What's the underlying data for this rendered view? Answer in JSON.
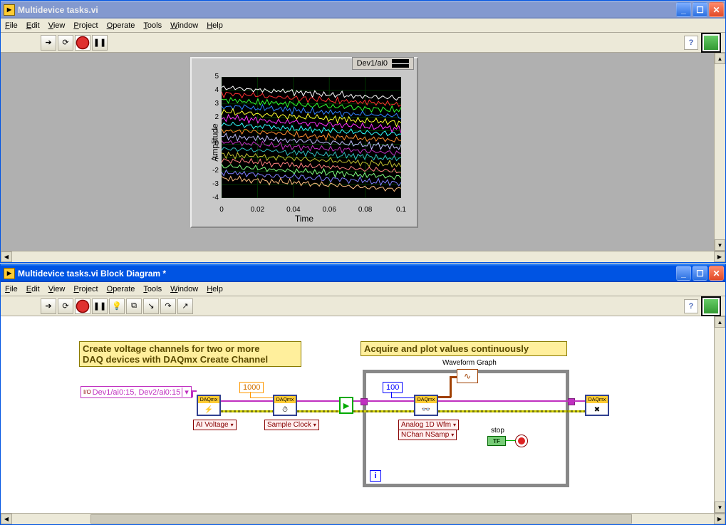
{
  "front_panel": {
    "title": "Multidevice tasks.vi",
    "menus": [
      "File",
      "Edit",
      "View",
      "Project",
      "Operate",
      "Tools",
      "Window",
      "Help"
    ],
    "chart": {
      "type": "waveform",
      "legend_label": "Dev1/ai0",
      "xlabel": "Time",
      "ylabel": "Amplitude",
      "xlim": [
        0,
        0.1
      ],
      "ylim": [
        -4,
        5
      ],
      "xticks": [
        0,
        0.02,
        0.04,
        0.06,
        0.08,
        0.1
      ],
      "yticks": [
        -4,
        -3,
        -2,
        -1,
        0,
        1,
        2,
        3,
        4,
        5
      ],
      "background_color": "#000000",
      "grid_color": "#003300",
      "num_traces": 16,
      "trace_colors": [
        "#ffffff",
        "#ff3030",
        "#30ff30",
        "#3080ff",
        "#ffff30",
        "#ff30ff",
        "#30ffff",
        "#ff9030",
        "#c0c0ff",
        "#c030c0",
        "#30c0c0",
        "#c0c030",
        "#ff8080",
        "#80ff80",
        "#8080ff",
        "#ffc080"
      ],
      "panel_bg": "#c8c8c8"
    }
  },
  "block_diagram": {
    "title": "Multidevice tasks.vi Block Diagram *",
    "menus": [
      "File",
      "Edit",
      "View",
      "Project",
      "Operate",
      "Tools",
      "Window",
      "Help"
    ],
    "comment1_line1": "Create voltage channels for two or more",
    "comment1_line2": "DAQ devices with DAQmx Create Channel",
    "comment2": "Acquire and plot values continuously",
    "channel_string": "Dev1/ai0:15, Dev2/ai0:15",
    "rate_const": "1000",
    "nsamp_const": "100",
    "ai_voltage_sel": "AI Voltage",
    "sample_clock_sel": "Sample Clock",
    "read_sel_line1": "Analog 1D Wfm",
    "read_sel_line2": "NChan NSamp",
    "wfm_label": "Waveform Graph",
    "stop_label": "stop",
    "bool_text": "TF",
    "loop_i": "i",
    "daqmx_label": "DAQmx"
  }
}
